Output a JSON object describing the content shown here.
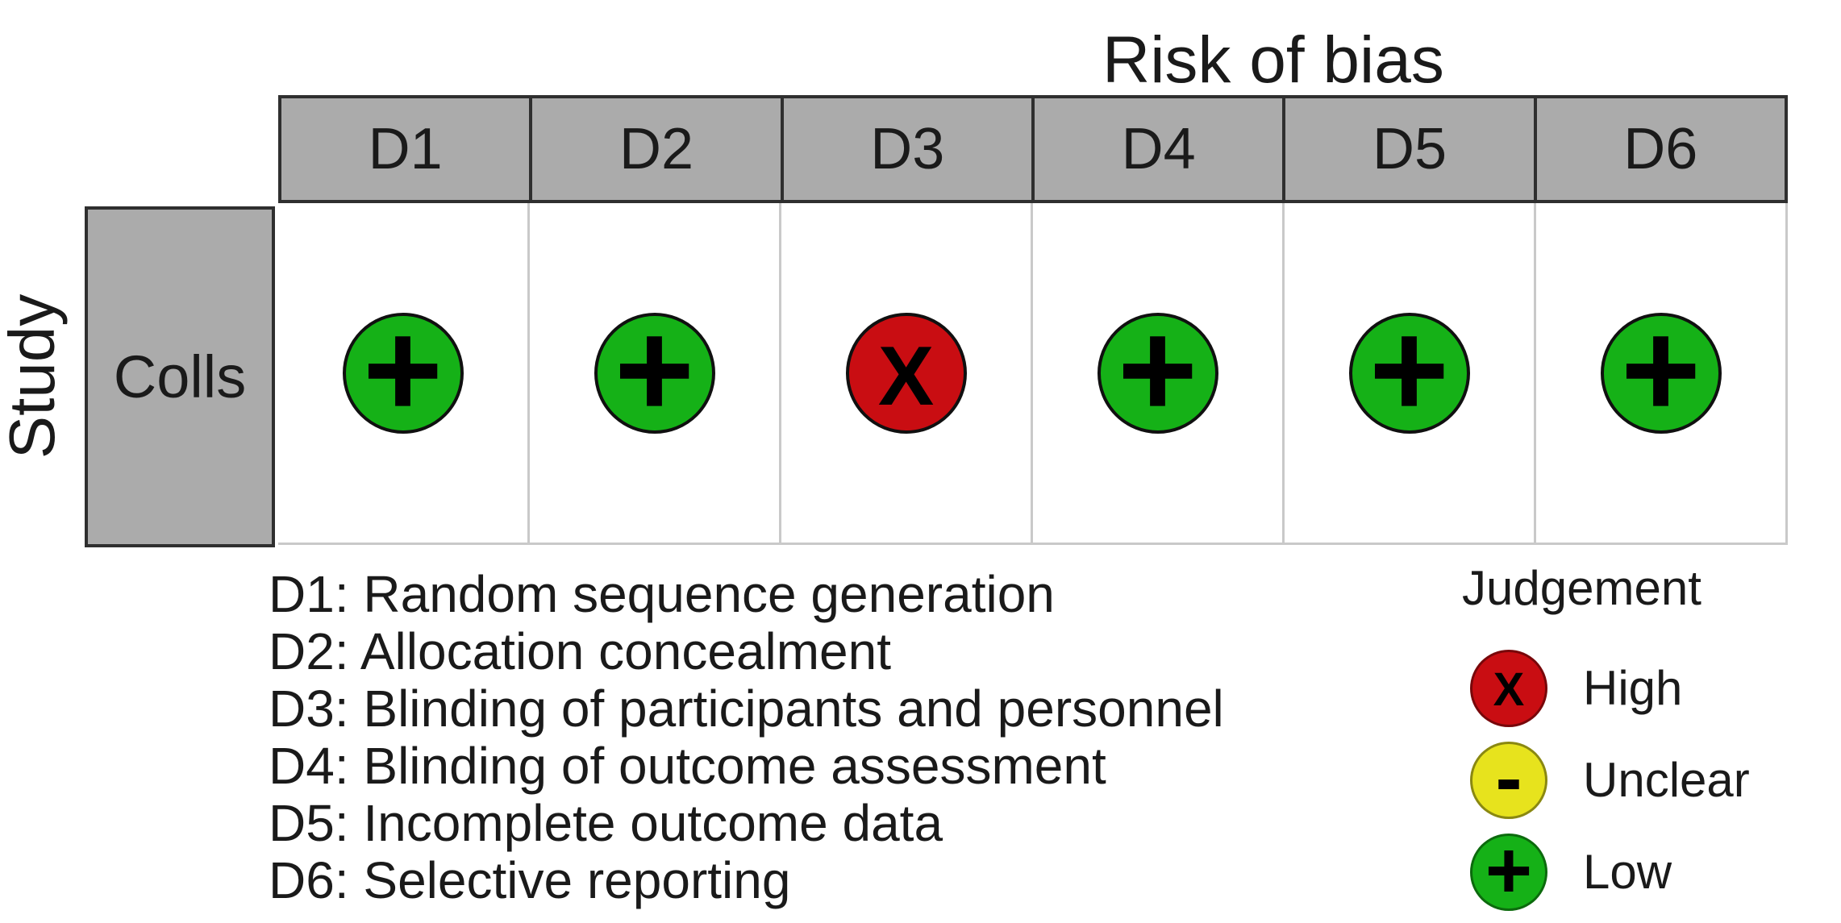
{
  "title": "Risk of bias",
  "axes": {
    "row_axis_label": "Study"
  },
  "columns": [
    "D1",
    "D2",
    "D3",
    "D4",
    "D5",
    "D6"
  ],
  "rows": [
    {
      "study": "Colls",
      "assessments": [
        {
          "domain": "D1",
          "judgement": "Low",
          "level": "low",
          "symbol": "+"
        },
        {
          "domain": "D2",
          "judgement": "Low",
          "level": "low",
          "symbol": "+"
        },
        {
          "domain": "D3",
          "judgement": "High",
          "level": "high",
          "symbol": "X"
        },
        {
          "domain": "D4",
          "judgement": "Low",
          "level": "low",
          "symbol": "+"
        },
        {
          "domain": "D5",
          "judgement": "Low",
          "level": "low",
          "symbol": "+"
        },
        {
          "domain": "D6",
          "judgement": "Low",
          "level": "low",
          "symbol": "+"
        }
      ]
    }
  ],
  "domain_definitions": [
    {
      "code": "D1",
      "label": "Random sequence generation",
      "text": "D1: Random sequence generation"
    },
    {
      "code": "D2",
      "label": "Allocation concealment",
      "text": "D2: Allocation concealment"
    },
    {
      "code": "D3",
      "label": "Blinding of participants and personnel",
      "text": "D3: Blinding of participants and personnel"
    },
    {
      "code": "D4",
      "label": "Blinding of outcome assessment",
      "text": "D4: Blinding of outcome assessment"
    },
    {
      "code": "D5",
      "label": "Incomplete outcome data",
      "text": "D5: Incomplete outcome data"
    },
    {
      "code": "D6",
      "label": "Selective reporting",
      "text": "D6: Selective reporting"
    }
  ],
  "judgement_legend": {
    "title": "Judgement",
    "items": [
      {
        "level": "high",
        "symbol": "X",
        "label": "High"
      },
      {
        "level": "unclear",
        "symbol": "-",
        "label": "Unclear"
      },
      {
        "level": "low",
        "symbol": "+",
        "label": "Low"
      }
    ]
  },
  "colors": {
    "judgement": {
      "high": "#C90D12",
      "unclear": "#E7E31D",
      "low": "#15B117"
    },
    "header_bg": "#ABABAB",
    "header_border": "#2F2F2F",
    "grid_line": "#C9C9C9",
    "symbol": "#000000",
    "text": "#1A1A1A",
    "background": "#FFFFFF"
  },
  "chart_data": {
    "type": "table",
    "subtype": "risk-of-bias-traffic-light",
    "title": "Risk of bias",
    "row_axis_label": "Study",
    "columns": [
      "D1",
      "D2",
      "D3",
      "D4",
      "D5",
      "D6"
    ],
    "rows": [
      {
        "study": "Colls",
        "judgements": [
          "Low",
          "Low",
          "High",
          "Low",
          "Low",
          "Low"
        ]
      }
    ],
    "domains": {
      "D1": "Random sequence generation",
      "D2": "Allocation concealment",
      "D3": "Blinding of participants and personnel",
      "D4": "Blinding of outcome assessment",
      "D5": "Incomplete outcome data",
      "D6": "Selective reporting"
    },
    "judgement_levels": [
      {
        "label": "High",
        "symbol": "X",
        "color": "#C90D12"
      },
      {
        "label": "Unclear",
        "symbol": "-",
        "color": "#E7E31D"
      },
      {
        "label": "Low",
        "symbol": "+",
        "color": "#15B117"
      }
    ],
    "legend_position": "bottom-right",
    "grid": false
  }
}
